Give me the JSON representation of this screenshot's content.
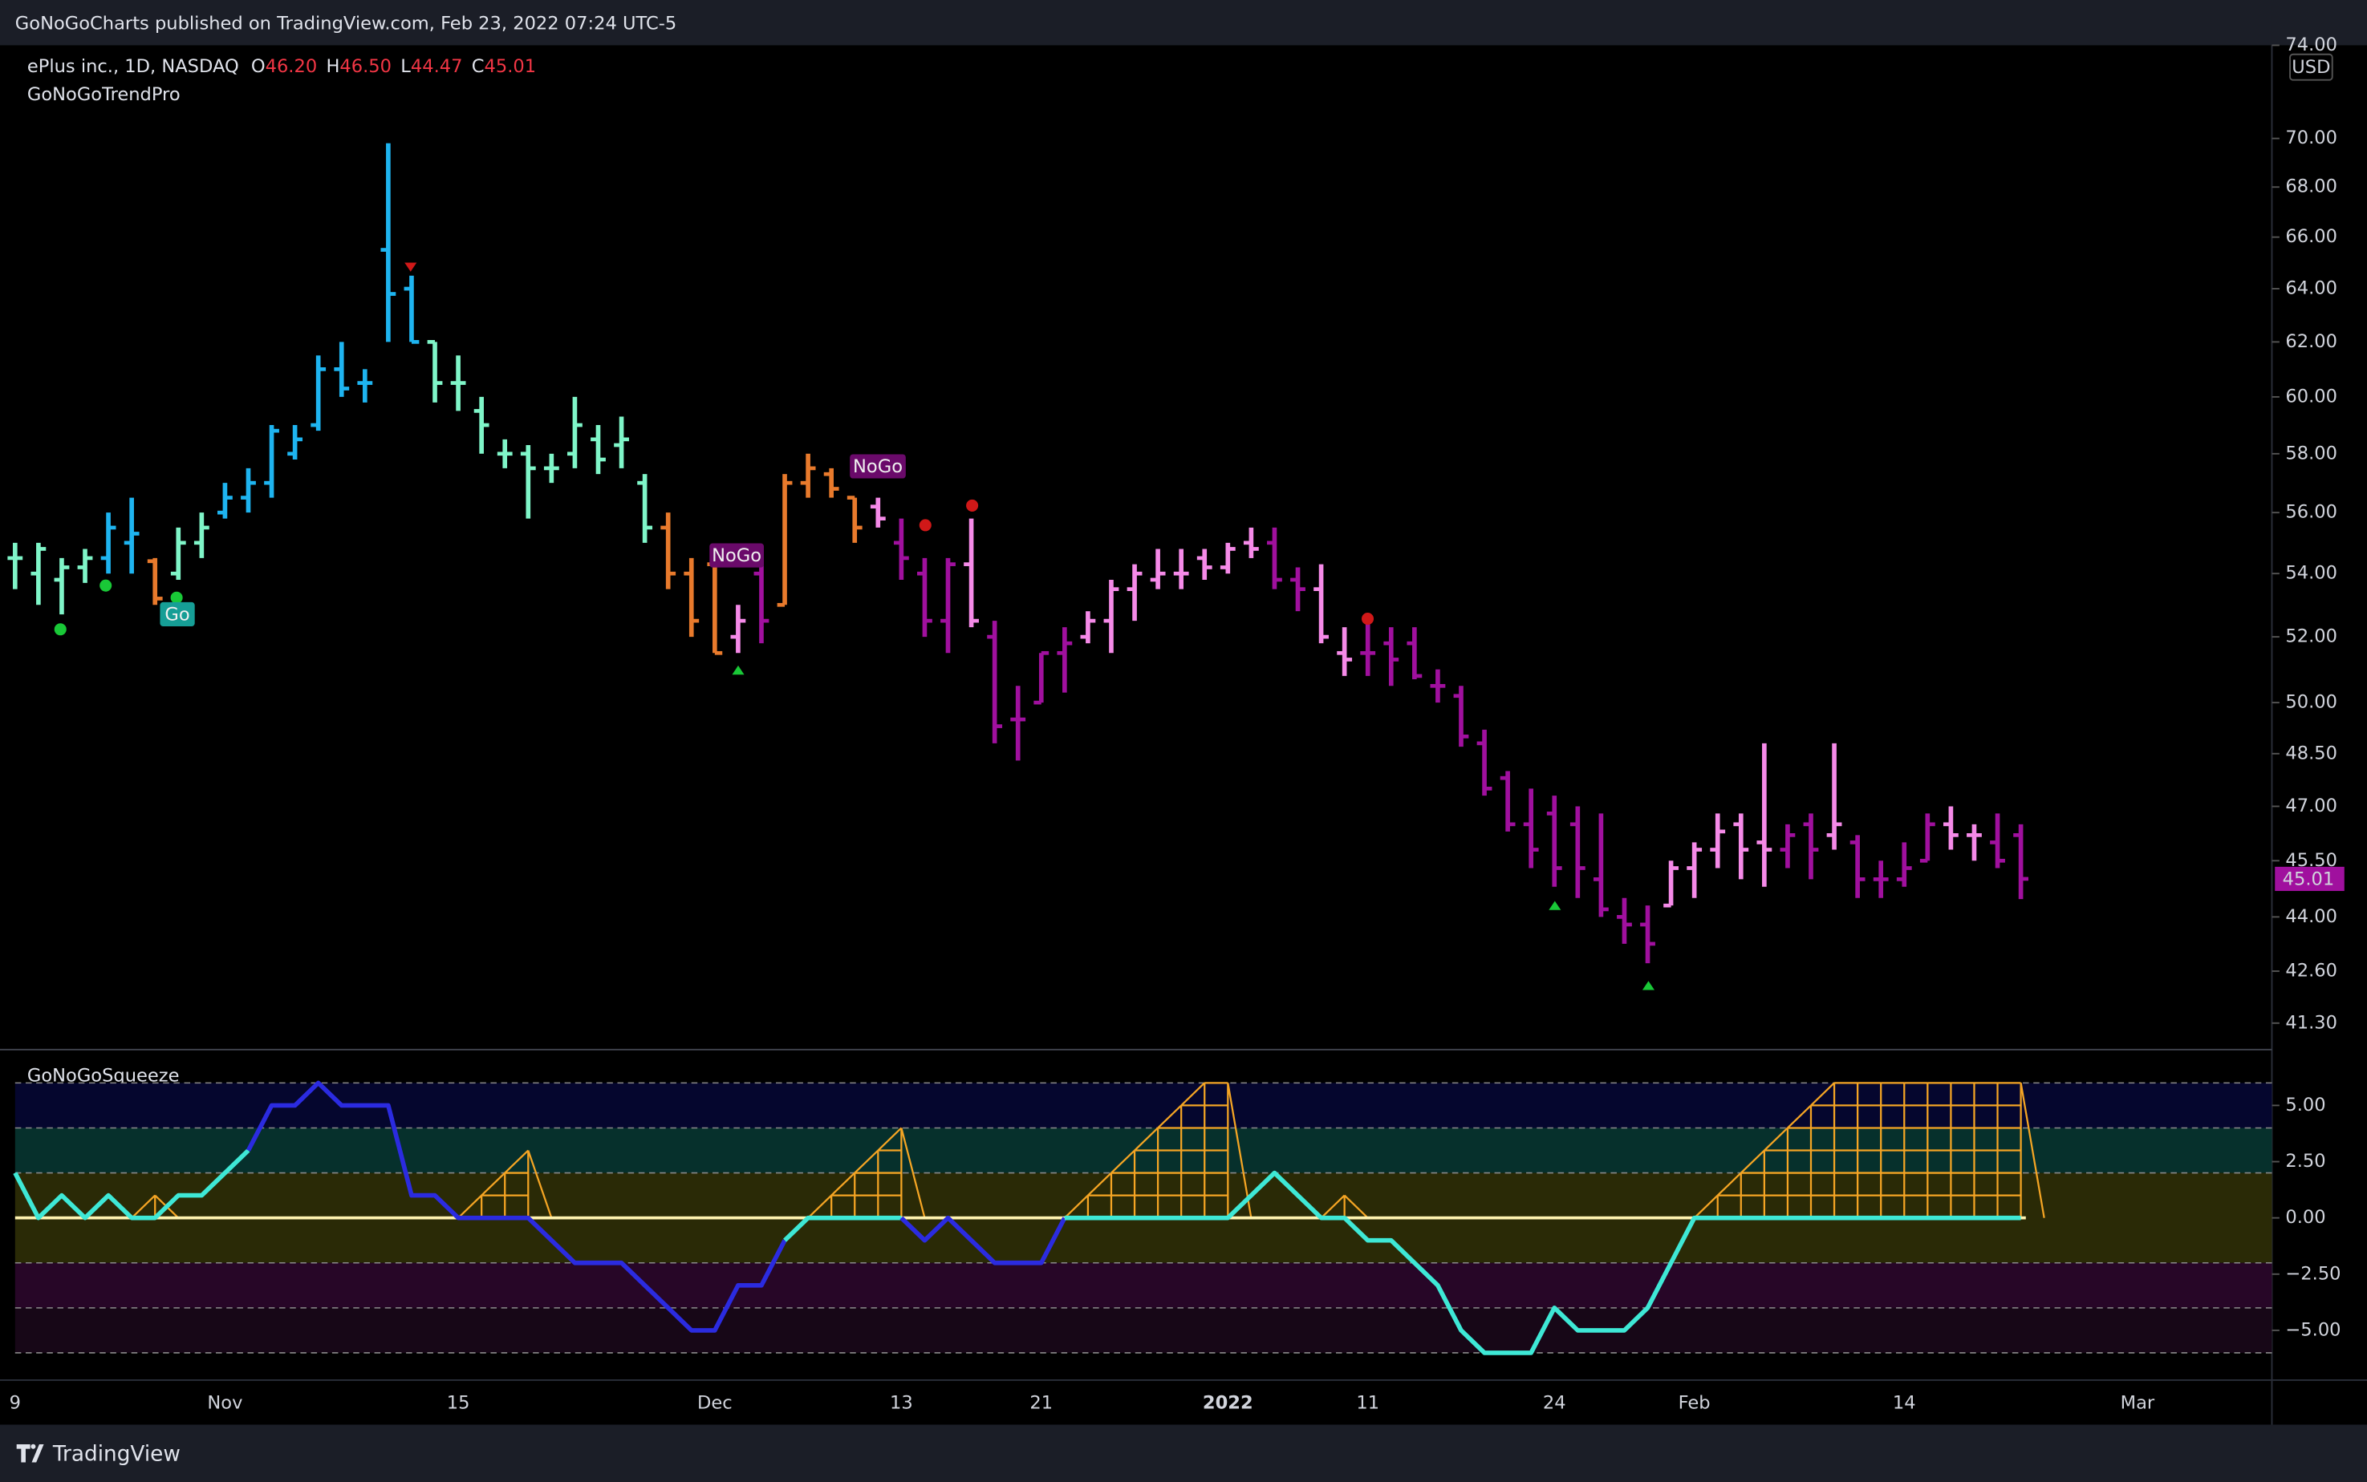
{
  "header": {
    "published": "GoNoGoCharts published on TradingView.com, Feb 23, 2022 07:24 UTC-5",
    "brand": "TradingView"
  },
  "chart_data": {
    "type": "ohlc",
    "title": "ePlus inc., 1D, NASDAQ",
    "indicator": "GoNoGoTrendPro",
    "ohlc_labels": [
      {
        "key": "O",
        "label": "46.20"
      },
      {
        "key": "H",
        "label": "46.50"
      },
      {
        "key": "L",
        "label": "44.47"
      },
      {
        "key": "C",
        "label": "45.01"
      }
    ],
    "currency": "USD",
    "annotations": [
      "Go",
      "NoGo",
      "NoGo"
    ],
    "log_scale": true,
    "ylim": [
      40.67,
      74
    ],
    "yticks": [
      {
        "value": 41.3,
        "label": "41.30"
      },
      {
        "value": 42.6,
        "label": "42.60"
      },
      {
        "value": 44,
        "label": "44.00"
      },
      {
        "value": 45.5,
        "label": "45.50"
      },
      {
        "value": 47,
        "label": "47.00"
      },
      {
        "value": 48.5,
        "label": "48.50"
      },
      {
        "value": 50,
        "label": "50.00"
      },
      {
        "value": 52,
        "label": "52.00"
      },
      {
        "value": 54,
        "label": "54.00"
      },
      {
        "value": 56,
        "label": "56.00"
      },
      {
        "value": 58,
        "label": "58.00"
      },
      {
        "value": 60,
        "label": "60.00"
      },
      {
        "value": 62,
        "label": "62.00"
      },
      {
        "value": 64,
        "label": "64.00"
      },
      {
        "value": 66,
        "label": "66.00"
      },
      {
        "value": 68,
        "label": "68.00"
      },
      {
        "value": 70,
        "label": "70.00"
      },
      {
        "value": 74,
        "label": "74.00"
      }
    ],
    "categories": [
      "9",
      null,
      null,
      null,
      null,
      null,
      null,
      null,
      null,
      "Nov",
      null,
      null,
      null,
      null,
      null,
      null,
      null,
      null,
      null,
      "15",
      null,
      null,
      null,
      null,
      null,
      null,
      null,
      null,
      null,
      null,
      "Dec",
      null,
      null,
      null,
      null,
      null,
      null,
      null,
      "13",
      null,
      null,
      null,
      null,
      null,
      "21",
      null,
      null,
      null,
      null,
      null,
      null,
      null,
      "2022",
      null,
      null,
      null,
      null,
      null,
      "11",
      null,
      null,
      null,
      null,
      null,
      null,
      null,
      "24",
      null,
      null,
      null,
      null,
      null,
      "Feb",
      null,
      null,
      null,
      null,
      null,
      null,
      null,
      null,
      "14",
      null,
      null,
      null,
      null,
      null,
      null,
      null,
      null,
      null,
      "Mar"
    ],
    "open": [
      54.5,
      54,
      53.8,
      54.2,
      54.5,
      55,
      54.4,
      54,
      55,
      56,
      56.5,
      57,
      58,
      59,
      61,
      60.5,
      65.5,
      64,
      62,
      60.5,
      59.5,
      58,
      58,
      57.5,
      58,
      58.5,
      58.3,
      57,
      55.5,
      54,
      54.3,
      52,
      54,
      53,
      57,
      57.3,
      56.5,
      56.2,
      55,
      54,
      52.5,
      54.3,
      52,
      49.5,
      50,
      51.5,
      52,
      52.5,
      53.5,
      53.8,
      54,
      54.5,
      54.2,
      55,
      55,
      53.8,
      53.5,
      51.5,
      51.5,
      51.8,
      51.8,
      50.5,
      50.2,
      48.8,
      47.8,
      46.5,
      46.8,
      46.5,
      45,
      44,
      43.8,
      44.3,
      45.3,
      45.8,
      46.5,
      46,
      45.8,
      46.5,
      46.2,
      46,
      45,
      45,
      45.5,
      46.5,
      46.2,
      46,
      46.2,
      null,
      null,
      null,
      null,
      null
    ],
    "high": [
      55,
      55,
      54.5,
      54.8,
      56,
      56.5,
      54.5,
      55.5,
      56,
      57,
      57.5,
      59,
      59,
      61.5,
      62,
      61,
      69.8,
      64.5,
      62,
      61.5,
      60,
      58.5,
      58.3,
      58,
      60,
      59,
      59.3,
      57.3,
      56,
      54.5,
      54.3,
      53,
      54.5,
      57.3,
      58,
      57.5,
      56.5,
      56.5,
      55.8,
      54.5,
      54.5,
      55.8,
      52.5,
      50.5,
      51.5,
      52.3,
      52.8,
      53.8,
      54.3,
      54.8,
      54.8,
      54.8,
      55,
      55.5,
      55.5,
      54.2,
      54.3,
      52.3,
      52.5,
      52.3,
      52.3,
      51,
      50.5,
      49.2,
      48,
      47.5,
      47.3,
      47,
      46.8,
      44.5,
      44.3,
      45.5,
      46,
      46.8,
      46.8,
      48.8,
      46.5,
      46.8,
      48.8,
      46.2,
      45.5,
      46,
      46.8,
      47,
      46.5,
      46.8,
      46.5,
      null,
      null,
      null,
      null,
      null
    ],
    "low": [
      53.5,
      53,
      52.7,
      53.7,
      54,
      54,
      53,
      53.8,
      54.5,
      55.8,
      56,
      56.5,
      57.8,
      58.8,
      60,
      59.8,
      62,
      62,
      59.8,
      59.5,
      58,
      57.5,
      55.8,
      57,
      57.5,
      57.3,
      57.5,
      55,
      53.5,
      52,
      51.5,
      51.5,
      51.8,
      53,
      56.5,
      56.5,
      55,
      55.5,
      53.8,
      52,
      51.5,
      52.3,
      48.8,
      48.3,
      50,
      50.3,
      51.8,
      51.5,
      52.5,
      53.5,
      53.5,
      53.8,
      54,
      54.5,
      53.5,
      52.8,
      51.8,
      50.8,
      50.8,
      50.5,
      50.7,
      50,
      48.7,
      47.3,
      46.3,
      45.3,
      44.8,
      44.5,
      44,
      43.3,
      42.8,
      44.3,
      44.5,
      45.3,
      45,
      44.8,
      45.3,
      45,
      45.8,
      44.5,
      44.5,
      44.8,
      45.5,
      45.8,
      45.5,
      45.3,
      44.47,
      null,
      null,
      null,
      null,
      null
    ],
    "close": [
      54.5,
      54.8,
      54.2,
      54.5,
      55.5,
      55.3,
      53.2,
      55,
      55.5,
      56.5,
      57,
      58.8,
      58.5,
      61,
      60.3,
      60.5,
      63.8,
      62,
      60.5,
      60.5,
      59,
      58,
      57.5,
      57.5,
      59,
      57.8,
      58.5,
      55.5,
      54,
      52.5,
      51.5,
      52.5,
      52.5,
      57,
      57.5,
      56.8,
      55.5,
      55.8,
      54.5,
      52.5,
      54.3,
      52.5,
      49.3,
      49.5,
      51.5,
      51.8,
      52.5,
      53.5,
      54,
      54,
      54,
      54.2,
      54.8,
      54.8,
      53.8,
      53.5,
      52,
      51.3,
      51.5,
      51.3,
      50.8,
      50.5,
      49,
      47.5,
      46.5,
      45.8,
      45.3,
      45.3,
      44.2,
      43.8,
      43.3,
      45.3,
      45.8,
      46.3,
      45.8,
      45.8,
      46.2,
      45.8,
      46.5,
      45,
      45,
      45.3,
      46.5,
      46.2,
      46.2,
      45.5,
      45.01,
      null,
      null,
      null,
      null,
      null
    ],
    "colors": [
      "#7ff5c8",
      "#7ff5c8",
      "#7ff5c8",
      "#7ff5c8",
      "#1eb4f0",
      "#1eb4f0",
      "#e87a2c",
      "#7ff5c8",
      "#7ff5c8",
      "#1eb4f0",
      "#1eb4f0",
      "#1eb4f0",
      "#1eb4f0",
      "#1eb4f0",
      "#1eb4f0",
      "#1eb4f0",
      "#1eb4f0",
      "#1eb4f0",
      "#7ff5c8",
      "#7ff5c8",
      "#7ff5c8",
      "#7ff5c8",
      "#7ff5c8",
      "#7ff5c8",
      "#7ff5c8",
      "#7ff5c8",
      "#7ff5c8",
      "#7ff5c8",
      "#e87a2c",
      "#e87a2c",
      "#e87a2c",
      "#f58ae8",
      "#a0109e",
      "#e87a2c",
      "#e87a2c",
      "#e87a2c",
      "#e87a2c",
      "#f58ae8",
      "#a0109e",
      "#a0109e",
      "#a0109e",
      "#f58ae8",
      "#a0109e",
      "#a0109e",
      "#a0109e",
      "#a0109e",
      "#f58ae8",
      "#f58ae8",
      "#f58ae8",
      "#f58ae8",
      "#f58ae8",
      "#f58ae8",
      "#f58ae8",
      "#f58ae8",
      "#a0109e",
      "#a0109e",
      "#f58ae8",
      "#f58ae8",
      "#a0109e",
      "#a0109e",
      "#a0109e",
      "#a0109e",
      "#a0109e",
      "#a0109e",
      "#a0109e",
      "#a0109e",
      "#a0109e",
      "#a0109e",
      "#a0109e",
      "#a0109e",
      "#a0109e",
      "#f58ae8",
      "#f58ae8",
      "#f58ae8",
      "#f58ae8",
      "#f58ae8",
      "#a0109e",
      "#a0109e",
      "#f58ae8",
      "#a0109e",
      "#a0109e",
      "#a0109e",
      "#a0109e",
      "#f58ae8",
      "#f58ae8",
      "#a0109e",
      "#a0109e",
      null,
      null,
      null,
      null,
      null
    ],
    "oscillator": {
      "type": "line",
      "title": "GoNoGoSqueeze",
      "ylim": [
        -7.18,
        7.38
      ],
      "yticks": [
        {
          "value": 5,
          "label": "5.00"
        },
        {
          "value": 2.5,
          "label": "2.50"
        },
        {
          "value": 0,
          "label": "0.00"
        },
        {
          "value": -2.5,
          "label": "−2.50"
        },
        {
          "value": -5,
          "label": "−5.00"
        }
      ],
      "levels": [
        6,
        4,
        2,
        -2,
        -4,
        -6
      ],
      "band_colors": [
        "#05062e",
        "#06302c",
        "#2a2a06",
        "#270627",
        "#170717"
      ],
      "level_color": "#8a8a8a",
      "zero_color": "#fff3b0",
      "squeeze_color": "#f5a524",
      "values": [
        2,
        0,
        1,
        0,
        1,
        0,
        0,
        1,
        1,
        2,
        3,
        5,
        5,
        6,
        5,
        5,
        5,
        1,
        1,
        0,
        0,
        0,
        0,
        -1,
        -2,
        -2,
        -2,
        -3,
        -4,
        -5,
        -5,
        -3,
        -3,
        -1,
        0,
        0,
        0,
        0,
        0,
        -1,
        0,
        -1,
        -2,
        -2,
        -2,
        0,
        0,
        0,
        0,
        0,
        0,
        0,
        0,
        1,
        2,
        1,
        0,
        0,
        -1,
        -1,
        -2,
        -3,
        -5,
        -6,
        -6,
        -6,
        -4,
        -5,
        -5,
        -5,
        -4,
        -2,
        0,
        0,
        0,
        0,
        0,
        0,
        0,
        0,
        0,
        0,
        0,
        0,
        0,
        0,
        0,
        null,
        null,
        null,
        null,
        null
      ],
      "colors": [
        "#3ee8d6",
        "#3ee8d6",
        "#3ee8d6",
        "#3ee8d6",
        "#3ee8d6",
        "#3ee8d6",
        "#3ee8d6",
        "#3ee8d6",
        "#3ee8d6",
        "#3ee8d6",
        "#3ee8d6",
        "#2b2be0",
        "#2b2be0",
        "#2b2be0",
        "#2b2be0",
        "#2b2be0",
        "#2b2be0",
        "#2b2be0",
        "#2b2be0",
        "#2b2be0",
        "#2b2be0",
        "#2b2be0",
        "#2b2be0",
        "#2b2be0",
        "#2b2be0",
        "#2b2be0",
        "#2b2be0",
        "#2b2be0",
        "#2b2be0",
        "#2b2be0",
        "#2b2be0",
        "#2b2be0",
        "#2b2be0",
        "#2b2be0",
        "#3ee8d6",
        "#3ee8d6",
        "#3ee8d6",
        "#3ee8d6",
        "#3ee8d6",
        "#2b2be0",
        "#2b2be0",
        "#2b2be0",
        "#2b2be0",
        "#2b2be0",
        "#2b2be0",
        "#2b2be0",
        "#3ee8d6",
        "#3ee8d6",
        "#3ee8d6",
        "#3ee8d6",
        "#3ee8d6",
        "#3ee8d6",
        "#3ee8d6",
        "#3ee8d6",
        "#3ee8d6",
        "#3ee8d6",
        "#3ee8d6",
        "#3ee8d6",
        "#3ee8d6",
        "#3ee8d6",
        "#3ee8d6",
        "#3ee8d6",
        "#3ee8d6",
        "#3ee8d6",
        "#3ee8d6",
        "#3ee8d6",
        "#3ee8d6",
        "#3ee8d6",
        "#3ee8d6",
        "#3ee8d6",
        "#3ee8d6",
        "#3ee8d6",
        "#3ee8d6",
        "#3ee8d6",
        "#3ee8d6",
        "#3ee8d6",
        "#3ee8d6",
        "#3ee8d6",
        "#3ee8d6",
        "#3ee8d6",
        "#3ee8d6",
        "#3ee8d6",
        "#3ee8d6",
        "#3ee8d6",
        "#3ee8d6",
        "#3ee8d6",
        "#3ee8d6",
        null,
        null,
        null,
        null,
        null
      ],
      "squeeze": [
        null,
        null,
        null,
        null,
        null,
        null,
        1,
        null,
        null,
        null,
        null,
        null,
        null,
        null,
        null,
        null,
        null,
        null,
        null,
        null,
        1,
        2,
        3,
        null,
        null,
        null,
        null,
        null,
        null,
        null,
        null,
        null,
        null,
        null,
        null,
        1,
        2,
        3,
        4,
        null,
        null,
        null,
        null,
        null,
        null,
        null,
        1,
        2,
        3,
        4,
        5,
        6,
        6,
        null,
        null,
        null,
        null,
        1,
        null,
        null,
        null,
        null,
        null,
        null,
        null,
        null,
        null,
        null,
        null,
        null,
        null,
        null,
        null,
        1,
        2,
        3,
        4,
        5,
        6,
        6,
        6,
        6,
        6,
        6,
        6,
        6,
        6,
        null,
        null,
        null,
        null,
        null
      ]
    }
  }
}
